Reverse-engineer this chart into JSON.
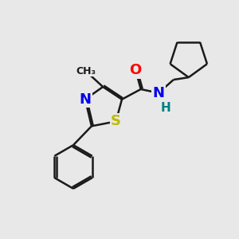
{
  "background_color": "#e8e8e8",
  "bond_color": "#1a1a1a",
  "bond_width": 1.8,
  "atom_colors": {
    "N": "#0000ee",
    "O": "#ff0000",
    "S": "#bbbb00",
    "H": "#008080",
    "C": "#1a1a1a"
  },
  "font_size_atom": 13,
  "font_size_small": 9,
  "font_size_H": 11
}
